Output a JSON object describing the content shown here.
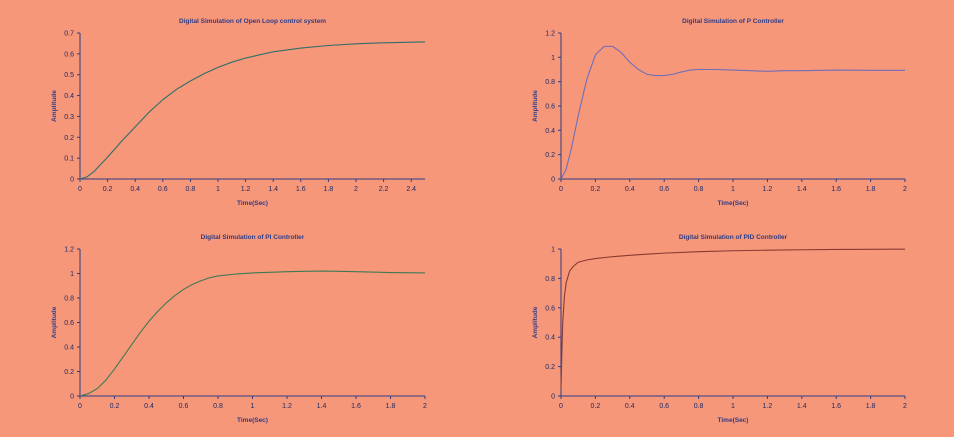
{
  "figure": {
    "background": "#f6977a",
    "axis_color": "#2e3d86",
    "tick_label_color": "#1e2a66"
  },
  "chart_data": [
    {
      "type": "line",
      "title": "Digital Simulation of Open Loop control system",
      "xlabel": "Time(Sec)",
      "ylabel": "Amplitude",
      "xlim": [
        0,
        2.5
      ],
      "ylim": [
        0,
        0.7
      ],
      "xticks": [
        "0",
        "0.2",
        "0.4",
        "0.6",
        "0.8",
        "1",
        "1.2",
        "1.4",
        "1.6",
        "1.8",
        "2",
        "2.2",
        "2.4"
      ],
      "yticks": [
        "0",
        "0.1",
        "0.2",
        "0.3",
        "0.4",
        "0.5",
        "0.6",
        "0.7"
      ],
      "grid": false,
      "series": [
        {
          "color": "#2f6f6a",
          "x": [
            0,
            0.05,
            0.1,
            0.15,
            0.2,
            0.3,
            0.4,
            0.5,
            0.6,
            0.7,
            0.8,
            0.9,
            1.0,
            1.1,
            1.2,
            1.4,
            1.6,
            1.8,
            2.0,
            2.2,
            2.4,
            2.5
          ],
          "y": [
            0,
            0.01,
            0.035,
            0.07,
            0.105,
            0.18,
            0.25,
            0.32,
            0.38,
            0.43,
            0.47,
            0.505,
            0.535,
            0.56,
            0.58,
            0.61,
            0.628,
            0.64,
            0.648,
            0.653,
            0.656,
            0.657
          ]
        }
      ]
    },
    {
      "type": "line",
      "title": "Digital Simulation of P Controller",
      "xlabel": "Time(Sec)",
      "ylabel": "Amplitude",
      "xlim": [
        0,
        2
      ],
      "ylim": [
        0,
        1.2
      ],
      "xticks": [
        "0",
        "0.2",
        "0.4",
        "0.6",
        "0.8",
        "1",
        "1.2",
        "1.4",
        "1.6",
        "1.8",
        "2"
      ],
      "yticks": [
        "0",
        "0.2",
        "0.4",
        "0.6",
        "0.8",
        "1",
        "1.2"
      ],
      "grid": false,
      "series": [
        {
          "color": "#6f6fb8",
          "x": [
            0,
            0.03,
            0.06,
            0.1,
            0.15,
            0.2,
            0.25,
            0.3,
            0.35,
            0.4,
            0.45,
            0.5,
            0.55,
            0.6,
            0.65,
            0.7,
            0.75,
            0.8,
            0.85,
            0.9,
            1.0,
            1.1,
            1.2,
            1.3,
            1.4,
            1.6,
            1.8,
            2.0
          ],
          "y": [
            0,
            0.08,
            0.25,
            0.52,
            0.82,
            1.02,
            1.09,
            1.09,
            1.04,
            0.96,
            0.9,
            0.86,
            0.85,
            0.85,
            0.86,
            0.88,
            0.895,
            0.9,
            0.9,
            0.9,
            0.895,
            0.89,
            0.885,
            0.89,
            0.89,
            0.895,
            0.893,
            0.893
          ]
        }
      ]
    },
    {
      "type": "line",
      "title": "Digital Simulation of PI Controller",
      "xlabel": "Time(Sec)",
      "ylabel": "Amplitude",
      "xlim": [
        0,
        2
      ],
      "ylim": [
        0,
        1.2
      ],
      "xticks": [
        "0",
        "0.2",
        "0.4",
        "0.6",
        "0.8",
        "1",
        "1.2",
        "1.4",
        "1.6",
        "1.8",
        "2"
      ],
      "yticks": [
        "0",
        "0.2",
        "0.4",
        "0.6",
        "0.8",
        "1",
        "1.2"
      ],
      "grid": false,
      "series": [
        {
          "color": "#3f7a52",
          "x": [
            0,
            0.05,
            0.1,
            0.15,
            0.2,
            0.25,
            0.3,
            0.35,
            0.4,
            0.45,
            0.5,
            0.55,
            0.6,
            0.65,
            0.7,
            0.75,
            0.8,
            0.9,
            1.0,
            1.1,
            1.2,
            1.3,
            1.4,
            1.5,
            1.6,
            1.8,
            2.0
          ],
          "y": [
            0,
            0.02,
            0.06,
            0.13,
            0.22,
            0.32,
            0.42,
            0.52,
            0.61,
            0.69,
            0.76,
            0.82,
            0.87,
            0.91,
            0.94,
            0.965,
            0.98,
            0.995,
            1.005,
            1.01,
            1.015,
            1.018,
            1.02,
            1.018,
            1.015,
            1.008,
            1.005
          ]
        }
      ]
    },
    {
      "type": "line",
      "title": "Digital Simulation of PID Controller",
      "xlabel": "Time(Sec)",
      "ylabel": "Amplitude",
      "xlim": [
        0,
        2
      ],
      "ylim": [
        0,
        1.0
      ],
      "xticks": [
        "0",
        "0.2",
        "0.4",
        "0.6",
        "0.8",
        "1",
        "1.2",
        "1.4",
        "1.6",
        "1.8",
        "2"
      ],
      "yticks": [
        "0",
        "0.2",
        "0.4",
        "0.6",
        "0.8",
        "1"
      ],
      "grid": false,
      "series": [
        {
          "color": "#8a3a30",
          "x": [
            0,
            0.005,
            0.01,
            0.02,
            0.03,
            0.05,
            0.07,
            0.1,
            0.15,
            0.2,
            0.3,
            0.4,
            0.5,
            0.6,
            0.8,
            1.0,
            1.2,
            1.4,
            1.6,
            1.8,
            2.0
          ],
          "y": [
            0.05,
            0.3,
            0.5,
            0.68,
            0.77,
            0.85,
            0.88,
            0.91,
            0.925,
            0.935,
            0.948,
            0.957,
            0.965,
            0.972,
            0.982,
            0.988,
            0.992,
            0.995,
            0.997,
            0.998,
            0.999
          ]
        }
      ]
    }
  ]
}
